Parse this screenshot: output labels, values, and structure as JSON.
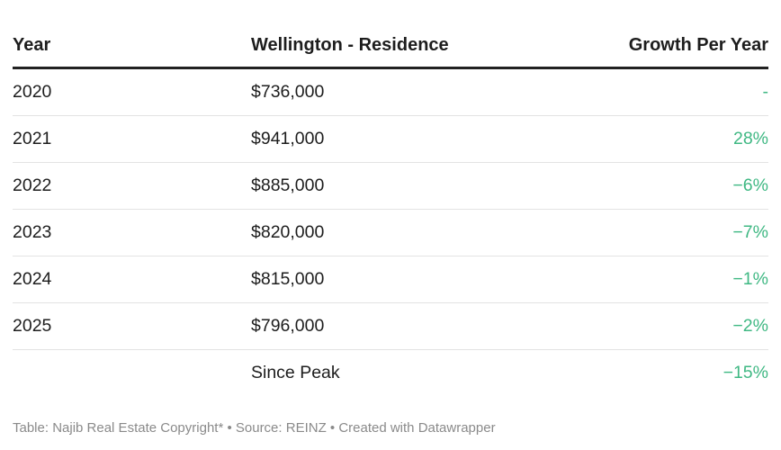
{
  "chart_data": {
    "type": "table",
    "columns": [
      "Year",
      "Wellington - Residence",
      "Growth Per Year"
    ],
    "rows": [
      [
        "2020",
        "$736,000",
        "-"
      ],
      [
        "2021",
        "$941,000",
        "28%"
      ],
      [
        "2022",
        "$885,000",
        "−6%"
      ],
      [
        "2023",
        "$820,000",
        "−7%"
      ],
      [
        "2024",
        "$815,000",
        "−1%"
      ],
      [
        "2025",
        "$796,000",
        "−2%"
      ],
      [
        "",
        "Since Peak",
        "−15%"
      ]
    ]
  },
  "colors": {
    "growth_text": "#3fb883",
    "header_rule": "#222222",
    "row_divider": "#e3e3e3"
  },
  "footer": {
    "text": "Table: Najib Real Estate Copyright* • Source: REINZ • Created with Datawrapper"
  }
}
